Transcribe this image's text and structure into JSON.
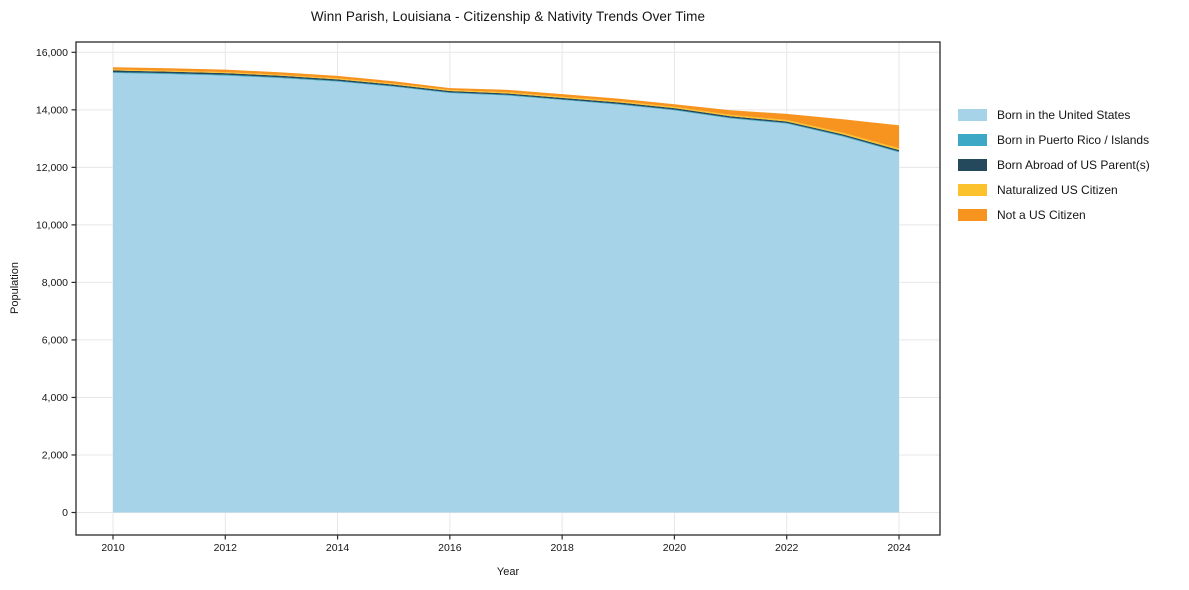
{
  "title": "Winn Parish, Louisiana - Citizenship & Nativity Trends Over Time",
  "chart_data": {
    "type": "area",
    "stacked": true,
    "title": "Winn Parish, Louisiana - Citizenship & Nativity Trends Over Time",
    "xlabel": "Year",
    "ylabel": "Population",
    "x": [
      2010,
      2011,
      2012,
      2013,
      2014,
      2015,
      2016,
      2017,
      2018,
      2019,
      2020,
      2021,
      2022,
      2023,
      2024
    ],
    "series": [
      {
        "name": "Born in the United States",
        "color": "#a6d3e8",
        "values": [
          15280,
          15240,
          15190,
          15100,
          14980,
          14800,
          14580,
          14500,
          14340,
          14180,
          13980,
          13700,
          13520,
          13070,
          12520
        ]
      },
      {
        "name": "Born in Puerto Rico / Islands",
        "color": "#3da8c5",
        "values": [
          30,
          30,
          30,
          28,
          26,
          25,
          25,
          24,
          24,
          25,
          25,
          25,
          26,
          28,
          30
        ]
      },
      {
        "name": "Born Abroad of US Parent(s)",
        "color": "#24485c",
        "values": [
          60,
          58,
          56,
          55,
          54,
          52,
          50,
          50,
          52,
          54,
          55,
          52,
          50,
          50,
          52
        ]
      },
      {
        "name": "Naturalized US Citizen",
        "color": "#fcc22d",
        "values": [
          32,
          32,
          33,
          34,
          35,
          35,
          36,
          38,
          40,
          42,
          44,
          46,
          50,
          55,
          60
        ]
      },
      {
        "name": "Not a US Citizen",
        "color": "#f7941f",
        "values": [
          80,
          85,
          88,
          85,
          85,
          80,
          62,
          85,
          90,
          90,
          92,
          160,
          215,
          470,
          800
        ]
      }
    ],
    "xticks": [
      2010,
      2012,
      2014,
      2016,
      2018,
      2020,
      2022,
      2024
    ],
    "yticks": [
      0,
      2000,
      4000,
      6000,
      8000,
      10000,
      12000,
      14000,
      16000
    ],
    "xlim": [
      2010,
      2024
    ],
    "ylim": [
      0,
      16000
    ],
    "grid": true,
    "legend_position": "right"
  },
  "style": {
    "grid_color": "#e7e7e7",
    "spine_color": "#2a2a2a",
    "background": "#ffffff"
  }
}
